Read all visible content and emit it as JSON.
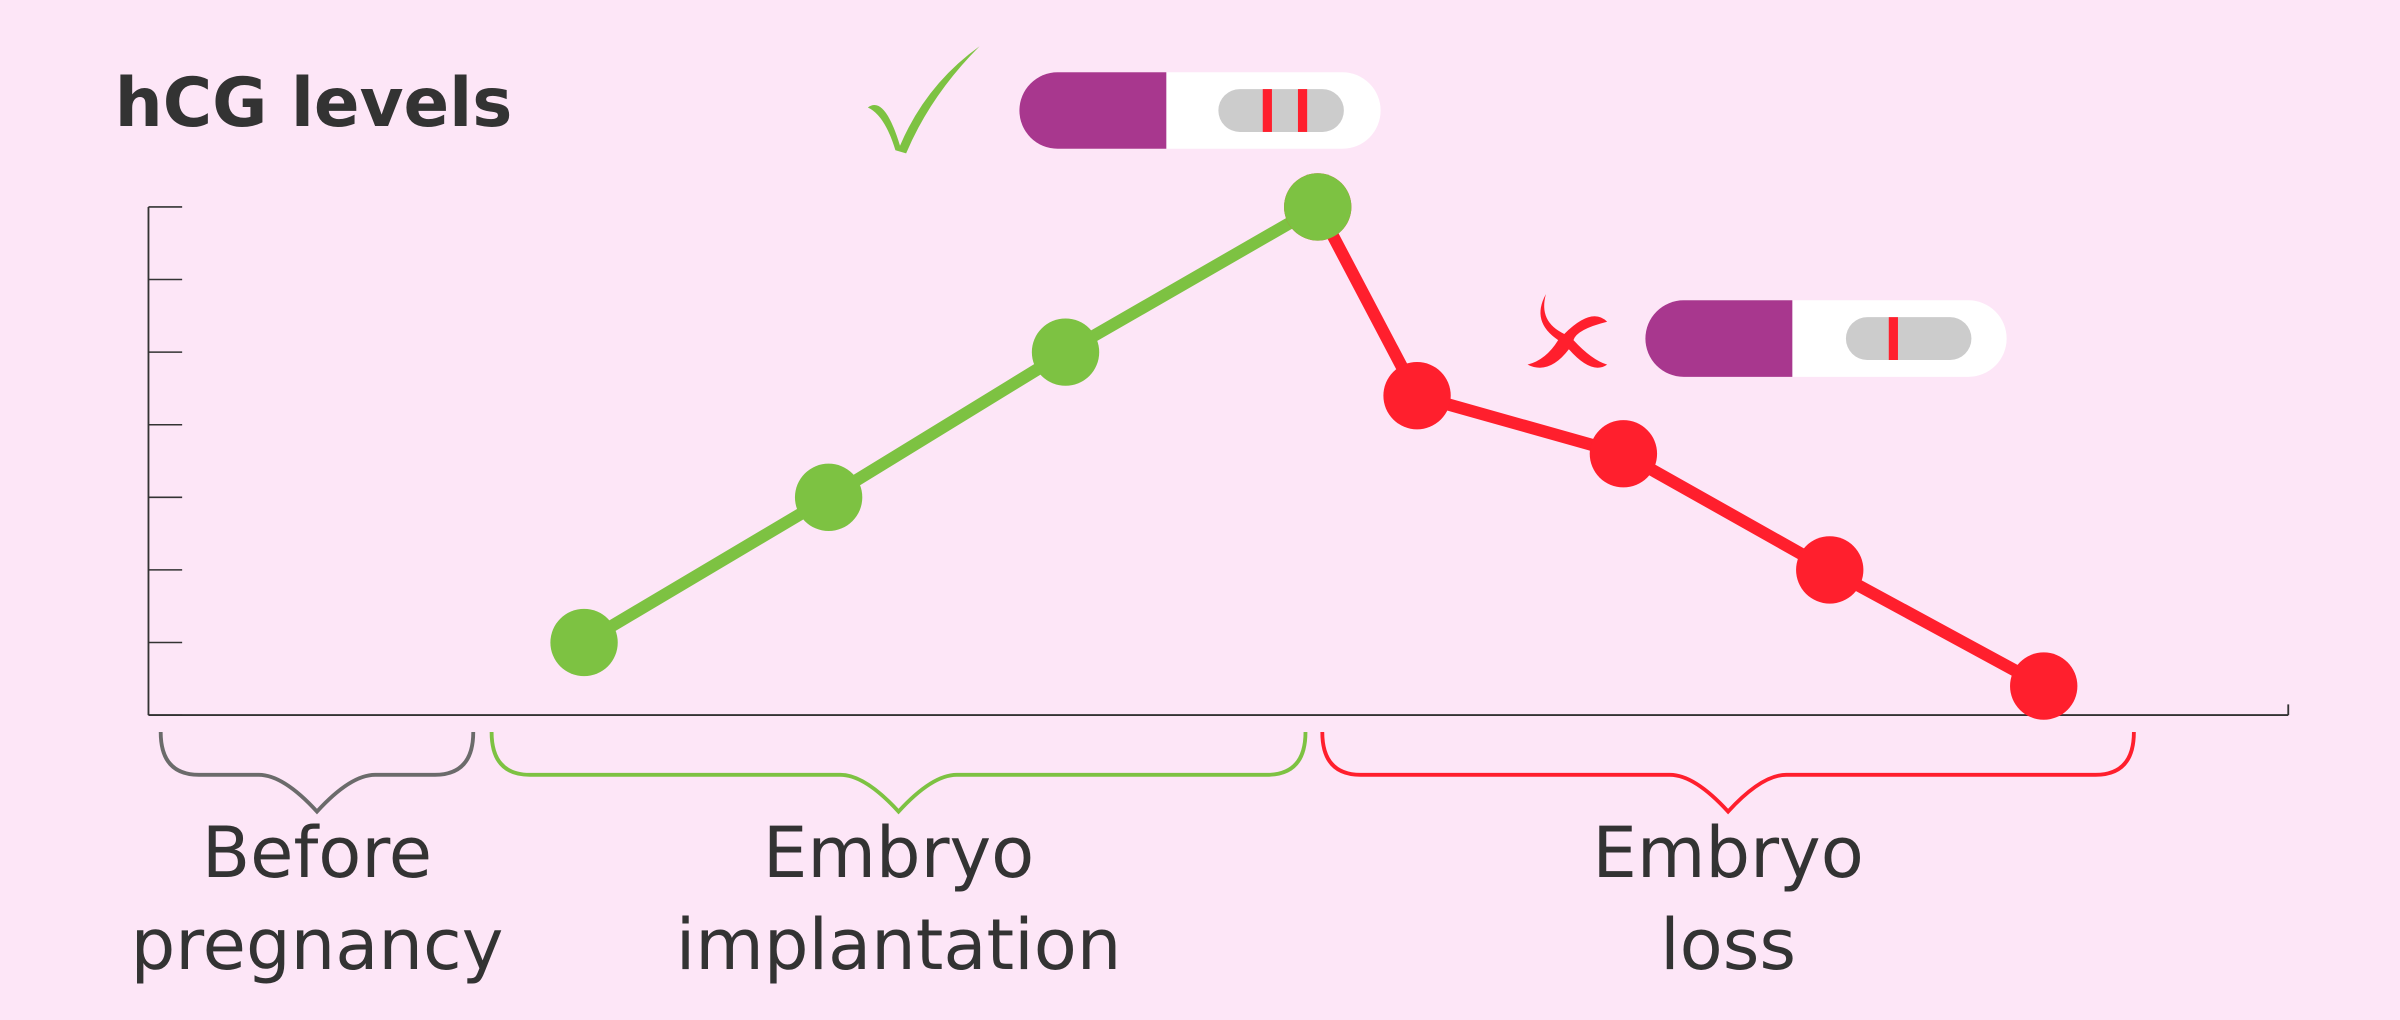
{
  "chart_data": {
    "type": "line",
    "title": "hCG levels",
    "xlim": [
      0,
      28
    ],
    "ylim": [
      0,
      7
    ],
    "yticks": [
      0,
      1,
      2,
      3,
      4,
      5,
      6,
      7
    ],
    "series": [
      {
        "color": "#ff1f2d",
        "x": [
          15.3,
          16.6,
          19.3,
          22.0,
          24.8
        ],
        "values": [
          7,
          4.4,
          3.6,
          2,
          0.4
        ]
      },
      {
        "color": "#7dc242",
        "x": [
          5.7,
          8.9,
          12.0,
          15.3
        ],
        "values": [
          1,
          3,
          5,
          7
        ]
      }
    ],
    "regions": [
      {
        "lines": [
          "Before",
          "pregnancy"
        ],
        "color": "#6b6b6b",
        "range": [
          0.16,
          4.25
        ]
      },
      {
        "lines": [
          "Embryo",
          "implantation"
        ],
        "color": "#7dc242",
        "range": [
          4.49,
          15.14
        ]
      },
      {
        "lines": [
          "Embryo",
          "loss"
        ],
        "color": "#ff1f2d",
        "range": [
          15.36,
          25.98
        ]
      }
    ]
  }
}
